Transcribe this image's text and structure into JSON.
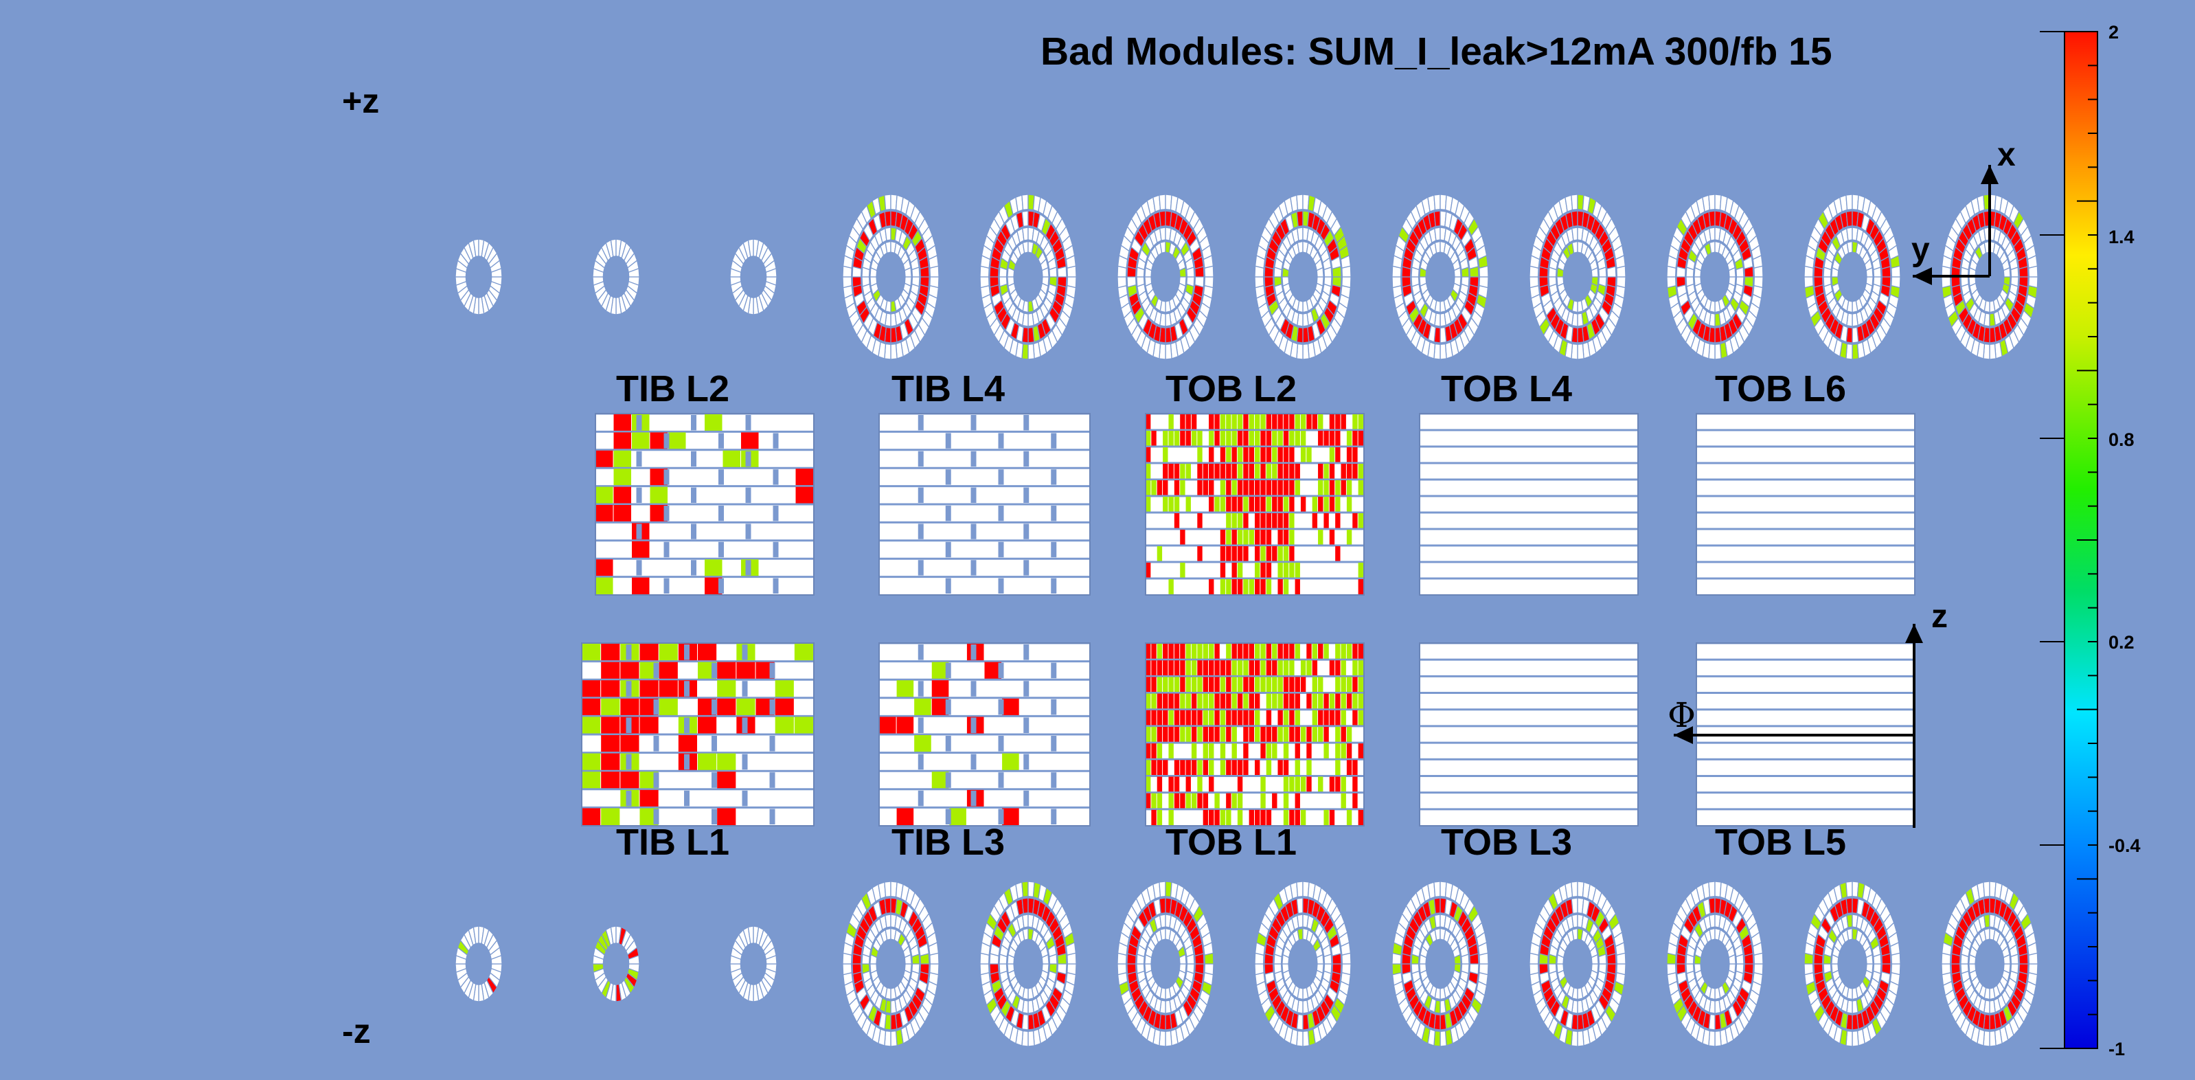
{
  "title": "Bad Modules: SUM_I_leak>12mA 300/fb 15",
  "z_plus": "+z",
  "z_minus": "-z",
  "axes": {
    "x": "x",
    "y": "y",
    "z": "z",
    "phi": "Φ"
  },
  "top_labels": [
    "TIB L2",
    "TIB L4",
    "TOB L2",
    "TOB L4",
    "TOB L6"
  ],
  "bottom_labels": [
    "TIB L1",
    "TIB L3",
    "TOB L1",
    "TOB L3",
    "TOB L5"
  ],
  "colorbar": {
    "ticks": [
      "2",
      "1.4",
      "0.8",
      "0.2",
      "-0.4",
      "-1"
    ],
    "min": -1,
    "max": 2
  },
  "colors": {
    "background": "#7b99cf",
    "bad": "#ff0000",
    "partial": "#aaee00",
    "good": "#ffffff"
  },
  "top_panels": [
    {
      "type": "TIB",
      "rows": 10,
      "fill": [
        0.45,
        0.05,
        0.05,
        0.2
      ]
    },
    {
      "type": "TIB",
      "rows": 10,
      "fill": [
        0.0,
        0.05,
        0.0,
        0.0
      ]
    },
    {
      "type": "TOB",
      "rows": 11,
      "fill": [
        0.05,
        0.6,
        0.05,
        0.6
      ]
    },
    {
      "type": "TOB",
      "rows": 11,
      "fill": [
        0,
        0,
        0,
        0
      ]
    },
    {
      "type": "TOB",
      "rows": 11,
      "fill": [
        0,
        0,
        0,
        0
      ]
    }
  ],
  "bottom_panels": [
    {
      "type": "TIB",
      "rows": 10,
      "fill": [
        0.6,
        0.1,
        0.0,
        0.35
      ]
    },
    {
      "type": "TIB",
      "rows": 10,
      "fill": [
        0.2,
        0.15,
        0.0,
        0.0
      ]
    },
    {
      "type": "TOB",
      "rows": 11,
      "fill": [
        0.5,
        0.45,
        0.3,
        0.5
      ]
    },
    {
      "type": "TOB",
      "rows": 11,
      "fill": [
        0.0,
        0.0,
        0.0,
        0.0
      ]
    },
    {
      "type": "TOB",
      "rows": 11,
      "fill": [
        0,
        0,
        0,
        0
      ]
    }
  ],
  "top_disks": [
    0.0,
    0.0,
    0.0,
    0.75,
    0.75,
    0.75,
    0.75,
    0.75,
    0.75,
    0.75,
    0.85,
    0.9
  ],
  "bottom_disks": [
    0.05,
    0.4,
    0.0,
    0.75,
    0.75,
    0.75,
    0.75,
    0.75,
    0.75,
    0.8,
    0.85,
    0.9
  ]
}
